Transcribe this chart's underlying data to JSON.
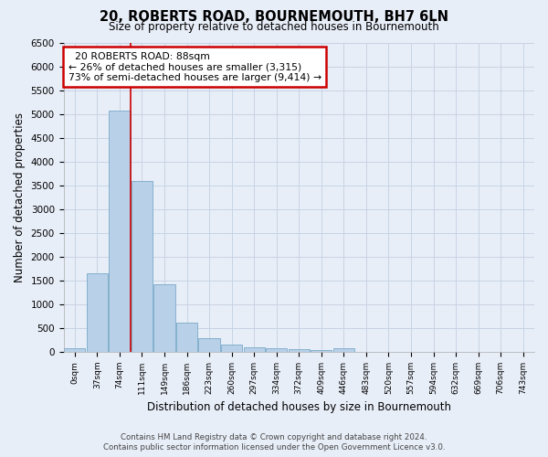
{
  "title": "20, ROBERTS ROAD, BOURNEMOUTH, BH7 6LN",
  "subtitle": "Size of property relative to detached houses in Bournemouth",
  "xlabel": "Distribution of detached houses by size in Bournemouth",
  "ylabel": "Number of detached properties",
  "footer_line1": "Contains HM Land Registry data © Crown copyright and database right 2024.",
  "footer_line2": "Contains public sector information licensed under the Open Government Licence v3.0.",
  "bar_labels": [
    "0sqm",
    "37sqm",
    "74sqm",
    "111sqm",
    "149sqm",
    "186sqm",
    "223sqm",
    "260sqm",
    "297sqm",
    "334sqm",
    "372sqm",
    "409sqm",
    "446sqm",
    "483sqm",
    "520sqm",
    "557sqm",
    "594sqm",
    "632sqm",
    "669sqm",
    "706sqm",
    "743sqm"
  ],
  "bar_values": [
    75,
    1650,
    5075,
    3600,
    1420,
    620,
    295,
    155,
    105,
    70,
    60,
    45,
    70,
    0,
    0,
    0,
    0,
    0,
    0,
    0,
    0
  ],
  "bar_color": "#b8d0e8",
  "bar_edge_color": "#7aaac8",
  "grid_color": "#c8d4e4",
  "background_color": "#e8eef8",
  "ylim": [
    0,
    6500
  ],
  "yticks": [
    0,
    500,
    1000,
    1500,
    2000,
    2500,
    3000,
    3500,
    4000,
    4500,
    5000,
    5500,
    6000,
    6500
  ],
  "property_label": "20 ROBERTS ROAD: 88sqm",
  "pct_smaller": "26% of detached houses are smaller (3,315)",
  "pct_larger": "73% of semi-detached houses are larger (9,414)",
  "vline_color": "#cc0000",
  "annotation_box_color": "#ffffff",
  "annotation_box_edge": "#cc0000"
}
